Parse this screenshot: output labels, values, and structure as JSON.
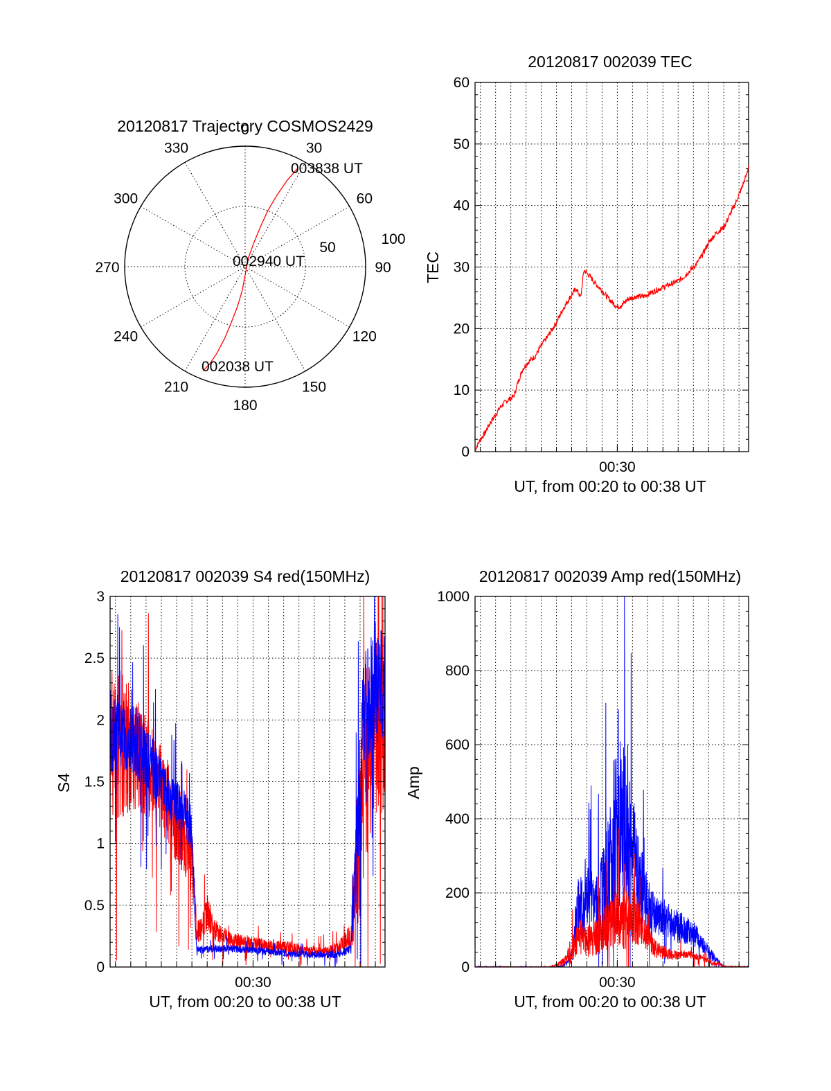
{
  "chart_data": [
    {
      "type": "polar",
      "id": "trajectory",
      "title": "20120817 Trajectory COSMOS2429",
      "azimuth_labels": [
        "0",
        "30",
        "60",
        "90",
        "120",
        "150",
        "180",
        "210",
        "240",
        "270",
        "300",
        "330"
      ],
      "ring_labels": [
        "50",
        "100"
      ],
      "start_label": "002038 UT",
      "mid_label": "002940 UT",
      "end_label": "003838 UT",
      "track": {
        "points": [
          {
            "az": 202,
            "r": 93
          },
          {
            "az": 200,
            "r": 86
          },
          {
            "az": 198,
            "r": 75
          },
          {
            "az": 196,
            "r": 62
          },
          {
            "az": 194,
            "r": 48
          },
          {
            "az": 191,
            "r": 34
          },
          {
            "az": 187,
            "r": 20
          },
          {
            "az": 180,
            "r": 7
          },
          {
            "az": 20,
            "r": 8
          },
          {
            "az": 20,
            "r": 21
          },
          {
            "az": 21,
            "r": 35
          },
          {
            "az": 22,
            "r": 50
          },
          {
            "az": 24,
            "r": 65
          },
          {
            "az": 26,
            "r": 80
          },
          {
            "az": 28,
            "r": 92
          }
        ],
        "color": "#ff0000"
      }
    },
    {
      "type": "line",
      "id": "tec",
      "title": "20120817 002039 TEC",
      "xlabel": "UT, from 00:20 to 00:38 UT",
      "ylabel": "TEC",
      "xlim": [
        20.65,
        38.63
      ],
      "ylim": [
        0,
        60
      ],
      "yticks": [
        0,
        10,
        20,
        30,
        40,
        50,
        60
      ],
      "xticks": [
        {
          "value": 30,
          "label": "00:30"
        }
      ],
      "grid": true,
      "series": [
        {
          "color": "#ff0000",
          "points": [
            [
              20.65,
              0.3
            ],
            [
              21.0,
              2.0
            ],
            [
              21.3,
              3.0
            ],
            [
              21.6,
              4.5
            ],
            [
              22.0,
              6.0
            ],
            [
              22.3,
              7.2
            ],
            [
              22.7,
              8.2
            ],
            [
              23.2,
              9.0
            ],
            [
              23.5,
              11.5
            ],
            [
              23.8,
              13.5
            ],
            [
              24.2,
              14.7
            ],
            [
              24.6,
              15.5
            ],
            [
              25.0,
              17.2
            ],
            [
              25.5,
              19.0
            ],
            [
              26.0,
              21.0
            ],
            [
              26.5,
              23.5
            ],
            [
              27.0,
              25.5
            ],
            [
              27.3,
              26.5
            ],
            [
              27.6,
              25.0
            ],
            [
              27.8,
              29.5
            ],
            [
              28.2,
              28.5
            ],
            [
              28.6,
              27.2
            ],
            [
              29.0,
              26.2
            ],
            [
              29.3,
              25.2
            ],
            [
              29.7,
              24.2
            ],
            [
              30.0,
              23.5
            ],
            [
              30.3,
              23.8
            ],
            [
              30.7,
              24.8
            ],
            [
              31.2,
              25.2
            ],
            [
              31.7,
              25.2
            ],
            [
              32.2,
              25.8
            ],
            [
              32.8,
              26.5
            ],
            [
              33.5,
              27.2
            ],
            [
              34.0,
              27.7
            ],
            [
              34.4,
              28.5
            ],
            [
              34.8,
              29.5
            ],
            [
              35.2,
              30.5
            ],
            [
              35.6,
              32.0
            ],
            [
              36.0,
              34.0
            ],
            [
              36.5,
              35.5
            ],
            [
              37.0,
              36.5
            ],
            [
              37.4,
              38.5
            ],
            [
              37.8,
              40.5
            ],
            [
              38.2,
              43.0
            ],
            [
              38.5,
              45.0
            ],
            [
              38.63,
              46.5
            ]
          ]
        }
      ]
    },
    {
      "type": "line",
      "id": "s4",
      "title": "20120817 002039 S4 red(150MHz)",
      "xlabel": "UT, from 00:20 to 00:38 UT",
      "ylabel": "S4",
      "xlim": [
        20.65,
        38.63
      ],
      "ylim": [
        0,
        3
      ],
      "yticks": [
        "0",
        "0.5",
        "1",
        "1.5",
        "2",
        "2.5",
        "3"
      ],
      "xticks": [
        {
          "value": 30,
          "label": "00:30"
        }
      ],
      "grid": true,
      "series": [
        {
          "color": "#ff0000",
          "noisy": true,
          "x": [
            20.65,
            21.5,
            22.5,
            23.5,
            24.5,
            25.5,
            26.0,
            26.3,
            26.6,
            27.0,
            27.5,
            28.5,
            29.5,
            30.5,
            31.5,
            32.5,
            33.5,
            34.5,
            35.5,
            36.4,
            36.8,
            37.2,
            38.0,
            38.63
          ],
          "values": [
            1.8,
            1.8,
            1.7,
            1.55,
            1.3,
            1.05,
            0.85,
            0.3,
            0.3,
            0.45,
            0.3,
            0.22,
            0.2,
            0.18,
            0.16,
            0.16,
            0.13,
            0.12,
            0.15,
            0.25,
            0.8,
            1.5,
            2.0,
            2.0
          ],
          "amplitude": [
            0.6,
            0.6,
            0.45,
            0.4,
            0.35,
            0.3,
            0.25,
            0.1,
            0.1,
            0.15,
            0.1,
            0.06,
            0.06,
            0.05,
            0.05,
            0.05,
            0.04,
            0.04,
            0.05,
            0.1,
            0.6,
            0.8,
            0.8,
            0.8
          ]
        },
        {
          "color": "#0000ff",
          "noisy": true,
          "x": [
            20.65,
            21.5,
            22.5,
            23.5,
            24.5,
            25.5,
            26.0,
            26.3,
            26.6,
            27.5,
            28.5,
            29.5,
            30.5,
            31.5,
            32.5,
            33.5,
            34.5,
            35.5,
            36.4,
            36.8,
            37.2,
            38.0,
            38.63
          ],
          "values": [
            1.9,
            1.9,
            1.8,
            1.6,
            1.4,
            1.25,
            1.1,
            0.15,
            0.14,
            0.15,
            0.15,
            0.14,
            0.13,
            0.12,
            0.11,
            0.1,
            0.1,
            0.1,
            0.15,
            1.0,
            2.0,
            2.3,
            2.3
          ],
          "amplitude": [
            0.35,
            0.3,
            0.3,
            0.25,
            0.2,
            0.2,
            0.2,
            0.03,
            0.03,
            0.03,
            0.03,
            0.03,
            0.03,
            0.03,
            0.03,
            0.03,
            0.03,
            0.03,
            0.04,
            0.4,
            0.5,
            0.5,
            0.5
          ]
        }
      ]
    },
    {
      "type": "line",
      "id": "amp",
      "title": "20120817 002039 Amp red(150MHz)",
      "xlabel": "UT, from 00:20 to 00:38 UT",
      "ylabel": "Amp",
      "xlim": [
        20.65,
        38.63
      ],
      "ylim": [
        0,
        1000
      ],
      "yticks": [
        "0",
        "200",
        "400",
        "600",
        "800",
        "1000"
      ],
      "xticks": [
        {
          "value": 30,
          "label": "00:30"
        }
      ],
      "grid": true,
      "series": [
        {
          "color": "#0000ff",
          "noisy": true,
          "x": [
            20.65,
            26.0,
            26.5,
            27.0,
            27.5,
            28.0,
            28.5,
            29.0,
            29.5,
            30.0,
            30.5,
            31.0,
            31.5,
            32.0,
            32.5,
            33.0,
            33.5,
            34.0,
            34.5,
            35.0,
            35.5,
            36.0,
            36.5,
            37.0,
            38.63
          ],
          "values": [
            0,
            0,
            4,
            30,
            180,
            200,
            160,
            190,
            260,
            380,
            430,
            320,
            220,
            160,
            130,
            140,
            120,
            110,
            100,
            90,
            70,
            40,
            20,
            0,
            0
          ],
          "amplitude": [
            1,
            1,
            3,
            20,
            110,
            110,
            90,
            110,
            180,
            320,
            260,
            150,
            120,
            80,
            60,
            55,
            45,
            45,
            40,
            35,
            25,
            20,
            10,
            1,
            1
          ]
        },
        {
          "color": "#ff0000",
          "noisy": true,
          "x": [
            20.65,
            25.5,
            26.0,
            26.5,
            27.0,
            27.5,
            28.0,
            28.5,
            29.0,
            29.5,
            30.0,
            30.5,
            31.0,
            31.5,
            32.0,
            32.5,
            33.0,
            33.5,
            34.0,
            34.5,
            35.0,
            35.5,
            36.0,
            36.5,
            37.0,
            38.63
          ],
          "values": [
            0,
            0,
            5,
            15,
            40,
            80,
            70,
            85,
            95,
            110,
            120,
            130,
            140,
            110,
            80,
            50,
            40,
            35,
            30,
            35,
            30,
            25,
            15,
            8,
            2,
            0
          ],
          "amplitude": [
            1,
            1,
            4,
            12,
            35,
            55,
            45,
            55,
            60,
            70,
            80,
            90,
            80,
            60,
            40,
            25,
            18,
            15,
            12,
            12,
            10,
            8,
            6,
            4,
            1,
            1
          ]
        }
      ]
    }
  ]
}
